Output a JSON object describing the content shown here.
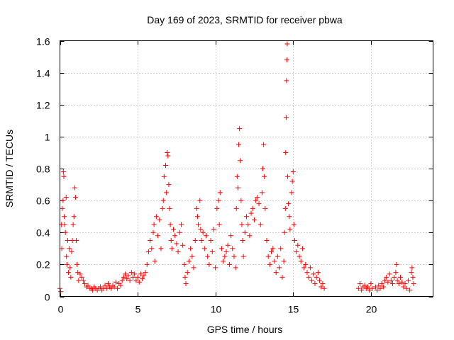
{
  "chart_data": {
    "type": "scatter",
    "title": "Day 169 of 2023, SRMTID for receiver pbwa",
    "xlabel": "GPS time / hours",
    "ylabel": "SRMTID / TECUs",
    "xlim": [
      0,
      24
    ],
    "ylim": [
      0,
      1.6
    ],
    "x_ticks": [
      0,
      5,
      10,
      15,
      20
    ],
    "x_tick_labels": [
      "0",
      "5",
      "10",
      "15",
      "20"
    ],
    "y_ticks": [
      0,
      0.2,
      0.4,
      0.6,
      0.8,
      1,
      1.2,
      1.4,
      1.6
    ],
    "y_tick_labels": [
      "0",
      "0.2",
      "0.4",
      "0.6",
      "0.8",
      "1",
      "1.2",
      "1.4",
      "1.6"
    ],
    "grid": true,
    "marker": "+",
    "color": "#ff0000",
    "series": [
      {
        "name": "SRMTID",
        "points": [
          [
            0.0,
            0.05
          ],
          [
            0.05,
            0.03
          ],
          [
            0.1,
            0.45
          ],
          [
            0.12,
            0.3
          ],
          [
            0.15,
            0.55
          ],
          [
            0.2,
            0.6
          ],
          [
            0.22,
            0.78
          ],
          [
            0.25,
            0.75
          ],
          [
            0.28,
            0.5
          ],
          [
            0.3,
            0.45
          ],
          [
            0.35,
            0.4
          ],
          [
            0.4,
            0.62
          ],
          [
            0.42,
            0.25
          ],
          [
            0.45,
            0.2
          ],
          [
            0.5,
            0.35
          ],
          [
            0.55,
            0.15
          ],
          [
            0.6,
            0.3
          ],
          [
            0.65,
            0.18
          ],
          [
            0.7,
            0.12
          ],
          [
            0.75,
            0.28
          ],
          [
            0.8,
            0.35
          ],
          [
            0.85,
            0.45
          ],
          [
            0.9,
            0.5
          ],
          [
            0.95,
            0.68
          ],
          [
            1.0,
            0.62
          ],
          [
            1.05,
            0.35
          ],
          [
            1.1,
            0.2
          ],
          [
            1.15,
            0.15
          ],
          [
            1.2,
            0.1
          ],
          [
            1.3,
            0.14
          ],
          [
            1.4,
            0.12
          ],
          [
            1.5,
            0.1
          ],
          [
            1.6,
            0.08
          ],
          [
            1.7,
            0.06
          ],
          [
            1.8,
            0.07
          ],
          [
            1.9,
            0.05
          ],
          [
            2.0,
            0.05
          ],
          [
            2.1,
            0.04
          ],
          [
            2.2,
            0.06
          ],
          [
            2.3,
            0.05
          ],
          [
            2.4,
            0.04
          ],
          [
            2.5,
            0.05
          ],
          [
            2.6,
            0.06
          ],
          [
            2.7,
            0.04
          ],
          [
            2.8,
            0.05
          ],
          [
            2.9,
            0.07
          ],
          [
            3.0,
            0.05
          ],
          [
            3.1,
            0.08
          ],
          [
            3.2,
            0.06
          ],
          [
            3.3,
            0.05
          ],
          [
            3.4,
            0.07
          ],
          [
            3.5,
            0.06
          ],
          [
            3.6,
            0.09
          ],
          [
            3.7,
            0.05
          ],
          [
            3.8,
            0.08
          ],
          [
            3.9,
            0.07
          ],
          [
            4.0,
            0.1
          ],
          [
            4.1,
            0.12
          ],
          [
            4.2,
            0.14
          ],
          [
            4.3,
            0.11
          ],
          [
            4.4,
            0.13
          ],
          [
            4.5,
            0.1
          ],
          [
            4.6,
            0.15
          ],
          [
            4.7,
            0.12
          ],
          [
            4.8,
            0.14
          ],
          [
            4.9,
            0.1
          ],
          [
            5.0,
            0.12
          ],
          [
            5.1,
            0.09
          ],
          [
            5.2,
            0.14
          ],
          [
            5.3,
            0.11
          ],
          [
            5.4,
            0.13
          ],
          [
            5.5,
            0.15
          ],
          [
            5.6,
            0.2
          ],
          [
            5.7,
            0.28
          ],
          [
            5.8,
            0.35
          ],
          [
            5.9,
            0.3
          ],
          [
            6.0,
            0.4
          ],
          [
            6.05,
            0.45
          ],
          [
            6.1,
            0.22
          ],
          [
            6.2,
            0.5
          ],
          [
            6.3,
            0.38
          ],
          [
            6.4,
            0.48
          ],
          [
            6.5,
            0.3
          ],
          [
            6.6,
            0.55
          ],
          [
            6.65,
            0.6
          ],
          [
            6.7,
            0.75
          ],
          [
            6.8,
            0.82
          ],
          [
            6.85,
            0.65
          ],
          [
            6.9,
            0.9
          ],
          [
            6.95,
            0.88
          ],
          [
            7.0,
            0.7
          ],
          [
            7.05,
            0.55
          ],
          [
            7.1,
            0.45
          ],
          [
            7.15,
            0.35
          ],
          [
            7.2,
            0.3
          ],
          [
            7.3,
            0.42
          ],
          [
            7.4,
            0.38
          ],
          [
            7.5,
            0.33
          ],
          [
            7.6,
            0.28
          ],
          [
            7.7,
            0.4
          ],
          [
            7.8,
            0.45
          ],
          [
            7.9,
            0.32
          ],
          [
            8.0,
            0.2
          ],
          [
            8.05,
            0.12
          ],
          [
            8.1,
            0.08
          ],
          [
            8.2,
            0.15
          ],
          [
            8.3,
            0.22
          ],
          [
            8.4,
            0.3
          ],
          [
            8.5,
            0.25
          ],
          [
            8.6,
            0.18
          ],
          [
            8.7,
            0.35
          ],
          [
            8.8,
            0.55
          ],
          [
            8.85,
            0.5
          ],
          [
            8.9,
            0.45
          ],
          [
            9.0,
            0.6
          ],
          [
            9.05,
            0.42
          ],
          [
            9.1,
            0.35
          ],
          [
            9.2,
            0.4
          ],
          [
            9.3,
            0.3
          ],
          [
            9.4,
            0.38
          ],
          [
            9.5,
            0.25
          ],
          [
            9.6,
            0.2
          ],
          [
            9.7,
            0.35
          ],
          [
            9.8,
            0.28
          ],
          [
            9.9,
            0.42
          ],
          [
            10.0,
            0.18
          ],
          [
            10.1,
            0.55
          ],
          [
            10.2,
            0.6
          ],
          [
            10.25,
            0.45
          ],
          [
            10.3,
            0.65
          ],
          [
            10.4,
            0.3
          ],
          [
            10.5,
            0.22
          ],
          [
            10.6,
            0.25
          ],
          [
            10.7,
            0.28
          ],
          [
            10.8,
            0.32
          ],
          [
            10.9,
            0.2
          ],
          [
            11.0,
            0.38
          ],
          [
            11.1,
            0.3
          ],
          [
            11.2,
            0.25
          ],
          [
            11.3,
            0.18
          ],
          [
            11.35,
            0.55
          ],
          [
            11.4,
            0.75
          ],
          [
            11.45,
            0.68
          ],
          [
            11.5,
            0.95
          ],
          [
            11.55,
            1.05
          ],
          [
            11.6,
            0.85
          ],
          [
            11.65,
            0.6
          ],
          [
            11.7,
            0.45
          ],
          [
            11.75,
            0.35
          ],
          [
            11.8,
            0.25
          ],
          [
            11.9,
            0.4
          ],
          [
            12.0,
            0.5
          ],
          [
            12.1,
            0.45
          ],
          [
            12.2,
            0.38
          ],
          [
            12.3,
            0.52
          ],
          [
            12.4,
            0.55
          ],
          [
            12.5,
            0.48
          ],
          [
            12.6,
            0.6
          ],
          [
            12.7,
            0.62
          ],
          [
            12.8,
            0.58
          ],
          [
            12.9,
            0.45
          ],
          [
            13.0,
            0.65
          ],
          [
            13.05,
            0.8
          ],
          [
            13.1,
            0.95
          ],
          [
            13.15,
            0.75
          ],
          [
            13.2,
            0.55
          ],
          [
            13.3,
            0.35
          ],
          [
            13.4,
            0.25
          ],
          [
            13.5,
            0.2
          ],
          [
            13.6,
            0.28
          ],
          [
            13.7,
            0.3
          ],
          [
            13.8,
            0.22
          ],
          [
            13.9,
            0.15
          ],
          [
            14.0,
            0.25
          ],
          [
            14.1,
            0.18
          ],
          [
            14.2,
            0.3
          ],
          [
            14.3,
            0.12
          ],
          [
            14.4,
            0.22
          ],
          [
            14.45,
            0.4
          ],
          [
            14.5,
            0.55
          ],
          [
            14.52,
            0.9
          ],
          [
            14.55,
            1.12
          ],
          [
            14.57,
            1.35
          ],
          [
            14.6,
            1.48
          ],
          [
            14.62,
            1.58
          ],
          [
            14.65,
            0.75
          ],
          [
            14.7,
            0.58
          ],
          [
            14.75,
            0.5
          ],
          [
            14.8,
            0.42
          ],
          [
            14.9,
            0.65
          ],
          [
            14.95,
            0.72
          ],
          [
            15.0,
            0.78
          ],
          [
            15.05,
            0.45
          ],
          [
            15.1,
            0.35
          ],
          [
            15.2,
            0.28
          ],
          [
            15.3,
            0.32
          ],
          [
            15.4,
            0.25
          ],
          [
            15.5,
            0.22
          ],
          [
            15.6,
            0.3
          ],
          [
            15.7,
            0.18
          ],
          [
            15.8,
            0.2
          ],
          [
            15.9,
            0.15
          ],
          [
            16.0,
            0.12
          ],
          [
            16.1,
            0.18
          ],
          [
            16.2,
            0.1
          ],
          [
            16.3,
            0.14
          ],
          [
            16.4,
            0.08
          ],
          [
            16.5,
            0.12
          ],
          [
            16.6,
            0.15
          ],
          [
            16.7,
            0.1
          ],
          [
            16.8,
            0.06
          ],
          [
            16.9,
            0.08
          ],
          [
            17.0,
            0.05
          ],
          [
            19.2,
            0.05
          ],
          [
            19.3,
            0.08
          ],
          [
            19.4,
            0.04
          ],
          [
            19.5,
            0.06
          ],
          [
            19.6,
            0.07
          ],
          [
            19.7,
            0.05
          ],
          [
            19.8,
            0.06
          ],
          [
            19.9,
            0.04
          ],
          [
            20.0,
            0.08
          ],
          [
            20.1,
            0.05
          ],
          [
            20.3,
            0.06
          ],
          [
            20.4,
            0.04
          ],
          [
            20.5,
            0.07
          ],
          [
            20.6,
            0.05
          ],
          [
            20.7,
            0.08
          ],
          [
            20.8,
            0.06
          ],
          [
            20.9,
            0.1
          ],
          [
            21.0,
            0.12
          ],
          [
            21.1,
            0.09
          ],
          [
            21.2,
            0.14
          ],
          [
            21.3,
            0.1
          ],
          [
            21.4,
            0.08
          ],
          [
            21.5,
            0.12
          ],
          [
            21.6,
            0.15
          ],
          [
            21.65,
            0.2
          ],
          [
            21.7,
            0.1
          ],
          [
            21.8,
            0.08
          ],
          [
            21.9,
            0.12
          ],
          [
            22.0,
            0.09
          ],
          [
            22.1,
            0.06
          ],
          [
            22.2,
            0.08
          ],
          [
            22.3,
            0.05
          ],
          [
            22.4,
            0.1
          ],
          [
            22.5,
            0.04
          ],
          [
            22.6,
            0.15
          ],
          [
            22.65,
            0.18
          ],
          [
            22.7,
            0.12
          ],
          [
            22.75,
            0.08
          ]
        ]
      }
    ]
  }
}
